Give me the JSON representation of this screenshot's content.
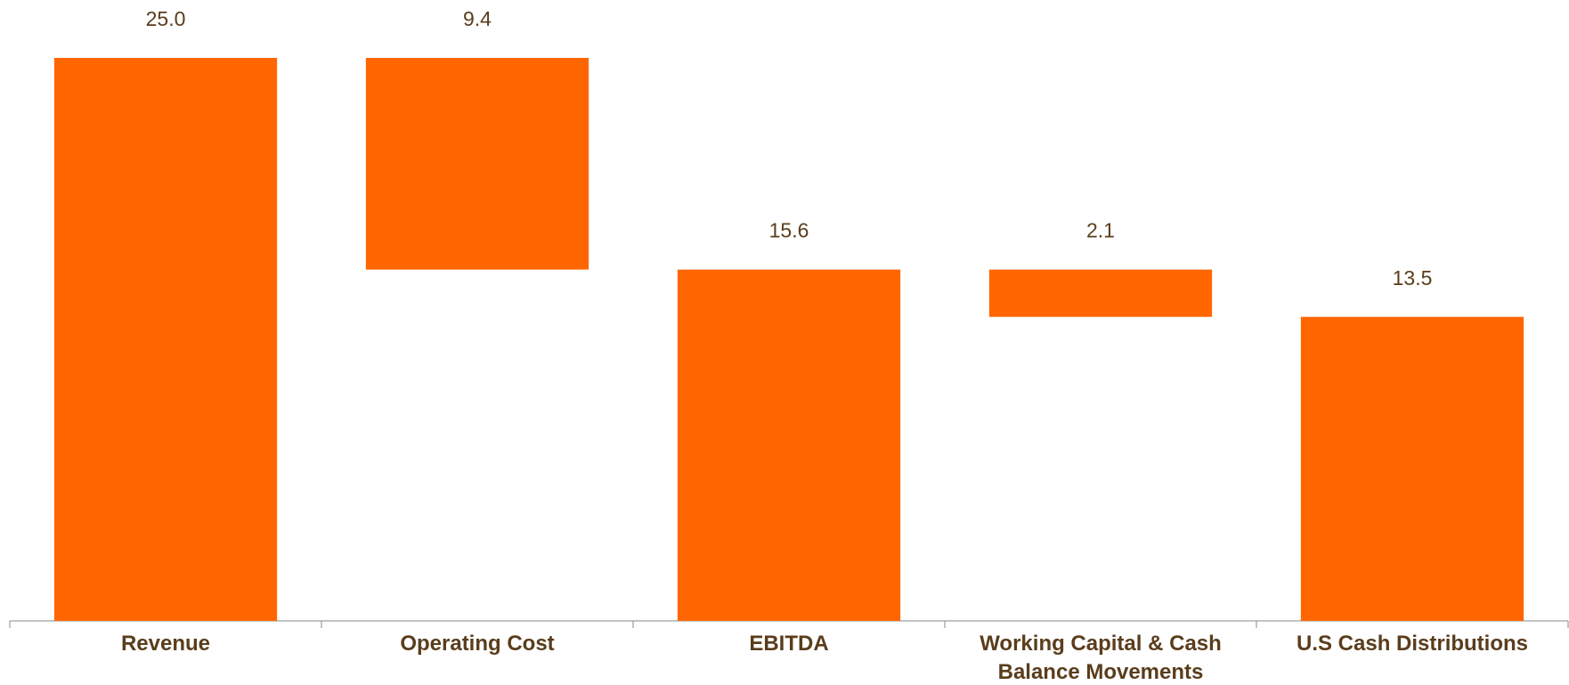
{
  "chart_data": {
    "type": "waterfall",
    "categories": [
      "Revenue",
      "Operating Cost",
      "EBITDA",
      "Working Capital & Cash Balance Movements",
      "U.S Cash Distributions"
    ],
    "values": [
      25,
      9.4,
      15.6,
      2.1,
      13.5
    ],
    "value_labels": [
      "25.0",
      "9.4",
      "15.6",
      "2.1",
      "13.5"
    ],
    "measures": [
      "absolute",
      "decrease",
      "absolute",
      "decrease",
      "absolute"
    ],
    "color": "#ff6600",
    "ylim": [
      0,
      25
    ]
  }
}
